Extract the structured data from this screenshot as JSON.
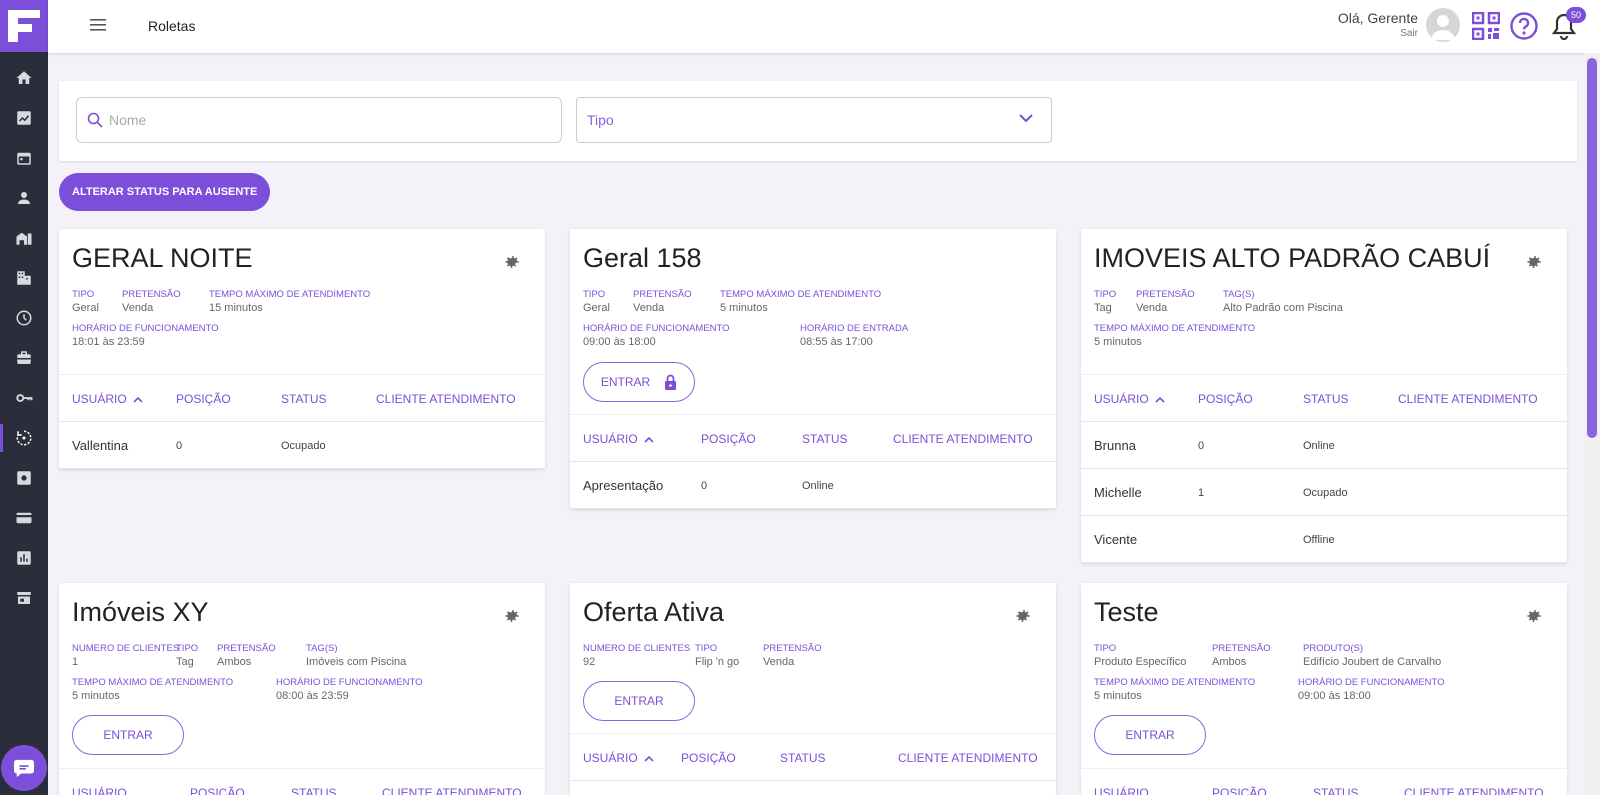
{
  "header": {
    "title": "Roletas",
    "greeting": "Olá, Gerente",
    "logout": "Sair",
    "notifications_count": "50"
  },
  "sidebar": {
    "items": [
      "home-icon",
      "chart-icon",
      "calendar-icon",
      "person-icon",
      "building-icon",
      "buildings-icon",
      "clock-icon",
      "briefcase-icon",
      "key-icon",
      "roulette-icon",
      "settings-icon",
      "card-icon",
      "bar-chart-icon",
      "store-icon"
    ],
    "active": "roulette-icon"
  },
  "filters": {
    "name_placeholder": "Nome",
    "type_placeholder": "Tipo"
  },
  "actions": {
    "set_absent": "ALTERAR STATUS PARA AUSENTE"
  },
  "cards": [
    {
      "title": "GERAL NOITE",
      "meta": [
        {
          "label": "TIPO",
          "value": "Geral"
        },
        {
          "label": "PRETENSÃO",
          "value": "Venda"
        },
        {
          "label": "TEMPO MÁXIMO DE ATENDIMENTO",
          "value": "15 minutos"
        },
        {
          "label": "HORÁRIO DE FUNCIONAMENTO",
          "value": "18:01 às 23:59"
        }
      ],
      "columns": [
        "USUÁRIO",
        "POSIÇÃO",
        "STATUS",
        "CLIENTE ATENDIMENTO"
      ],
      "rows": [
        [
          "Vallentina",
          "0",
          "Ocupado",
          ""
        ]
      ]
    },
    {
      "title": "Geral 158",
      "meta": [
        {
          "label": "TIPO",
          "value": "Geral"
        },
        {
          "label": "PRETENSÃO",
          "value": "Venda"
        },
        {
          "label": "TEMPO MÁXIMO DE ATENDIMENTO",
          "value": "5 minutos"
        },
        {
          "label": "HORÁRIO DE FUNCIONAMENTO",
          "value": "09:00 às 18:00"
        },
        {
          "label": "HORÁRIO DE ENTRADA",
          "value": "08:55 às 17:00"
        }
      ],
      "enter": "ENTRAR",
      "columns": [
        "USUÁRIO",
        "POSIÇÃO",
        "STATUS",
        "CLIENTE ATENDIMENTO"
      ],
      "rows": [
        [
          "Apresentação",
          "0",
          "Online",
          ""
        ]
      ]
    },
    {
      "title": "IMOVEIS ALTO PADRÃO CABUÍ",
      "meta": [
        {
          "label": "TIPO",
          "value": "Tag"
        },
        {
          "label": "PRETENSÃO",
          "value": "Venda"
        },
        {
          "label": "TAG(S)",
          "value": "Alto Padrão com Piscina"
        },
        {
          "label": "TEMPO MÁXIMO DE ATENDIMENTO",
          "value": "5 minutos"
        }
      ],
      "columns": [
        "USUÁRIO",
        "POSIÇÃO",
        "STATUS",
        "CLIENTE ATENDIMENTO"
      ],
      "rows": [
        [
          "Brunna",
          "0",
          "Online",
          ""
        ],
        [
          "Michelle",
          "1",
          "Ocupado",
          ""
        ],
        [
          "Vicente",
          "",
          "Offline",
          ""
        ]
      ]
    },
    {
      "title": "Imóveis XY",
      "meta": [
        {
          "label": "NUMERO DE CLIENTES",
          "value": "1"
        },
        {
          "label": "TIPO",
          "value": "Tag"
        },
        {
          "label": "PRETENSÃO",
          "value": "Ambos"
        },
        {
          "label": "TAG(S)",
          "value": "Imóveis com Piscina"
        },
        {
          "label": "TEMPO MÁXIMO DE ATENDIMENTO",
          "value": "5 minutos"
        },
        {
          "label": "HORÁRIO DE FUNCIONAMENTO",
          "value": "08:00 às 23:59"
        }
      ],
      "enter": "ENTRAR",
      "columns": [
        "USUÁRIO",
        "POSIÇÃO",
        "STATUS",
        "CLIENTE ATENDIMENTO"
      ]
    },
    {
      "title": "Oferta Ativa",
      "meta": [
        {
          "label": "NUMERO DE CLIENTES",
          "value": "92"
        },
        {
          "label": "TIPO",
          "value": "Flip 'n go"
        },
        {
          "label": "PRETENSÃO",
          "value": "Venda"
        }
      ],
      "enter": "ENTRAR",
      "columns": [
        "USUÁRIO",
        "POSIÇÃO",
        "STATUS",
        "CLIENTE ATENDIMENTO"
      ]
    },
    {
      "title": "Teste",
      "meta": [
        {
          "label": "TIPO",
          "value": "Produto Específico"
        },
        {
          "label": "PRETENSÃO",
          "value": "Ambos"
        },
        {
          "label": "PRODUTO(S)",
          "value": "Edifício Joubert de Carvalho"
        },
        {
          "label": "TEMPO MÁXIMO DE ATENDIMENTO",
          "value": "5 minutos"
        },
        {
          "label": "HORÁRIO DE FUNCIONAMENTO",
          "value": "09:00 às 18:00"
        }
      ],
      "enter": "ENTRAR",
      "columns": [
        "USUÁRIO",
        "POSIÇÃO",
        "STATUS",
        "CLIENTE ATENDIMENTO"
      ]
    }
  ],
  "colors": {
    "accent": "#7b4fd9",
    "sidebar": "#2b2d3a"
  }
}
